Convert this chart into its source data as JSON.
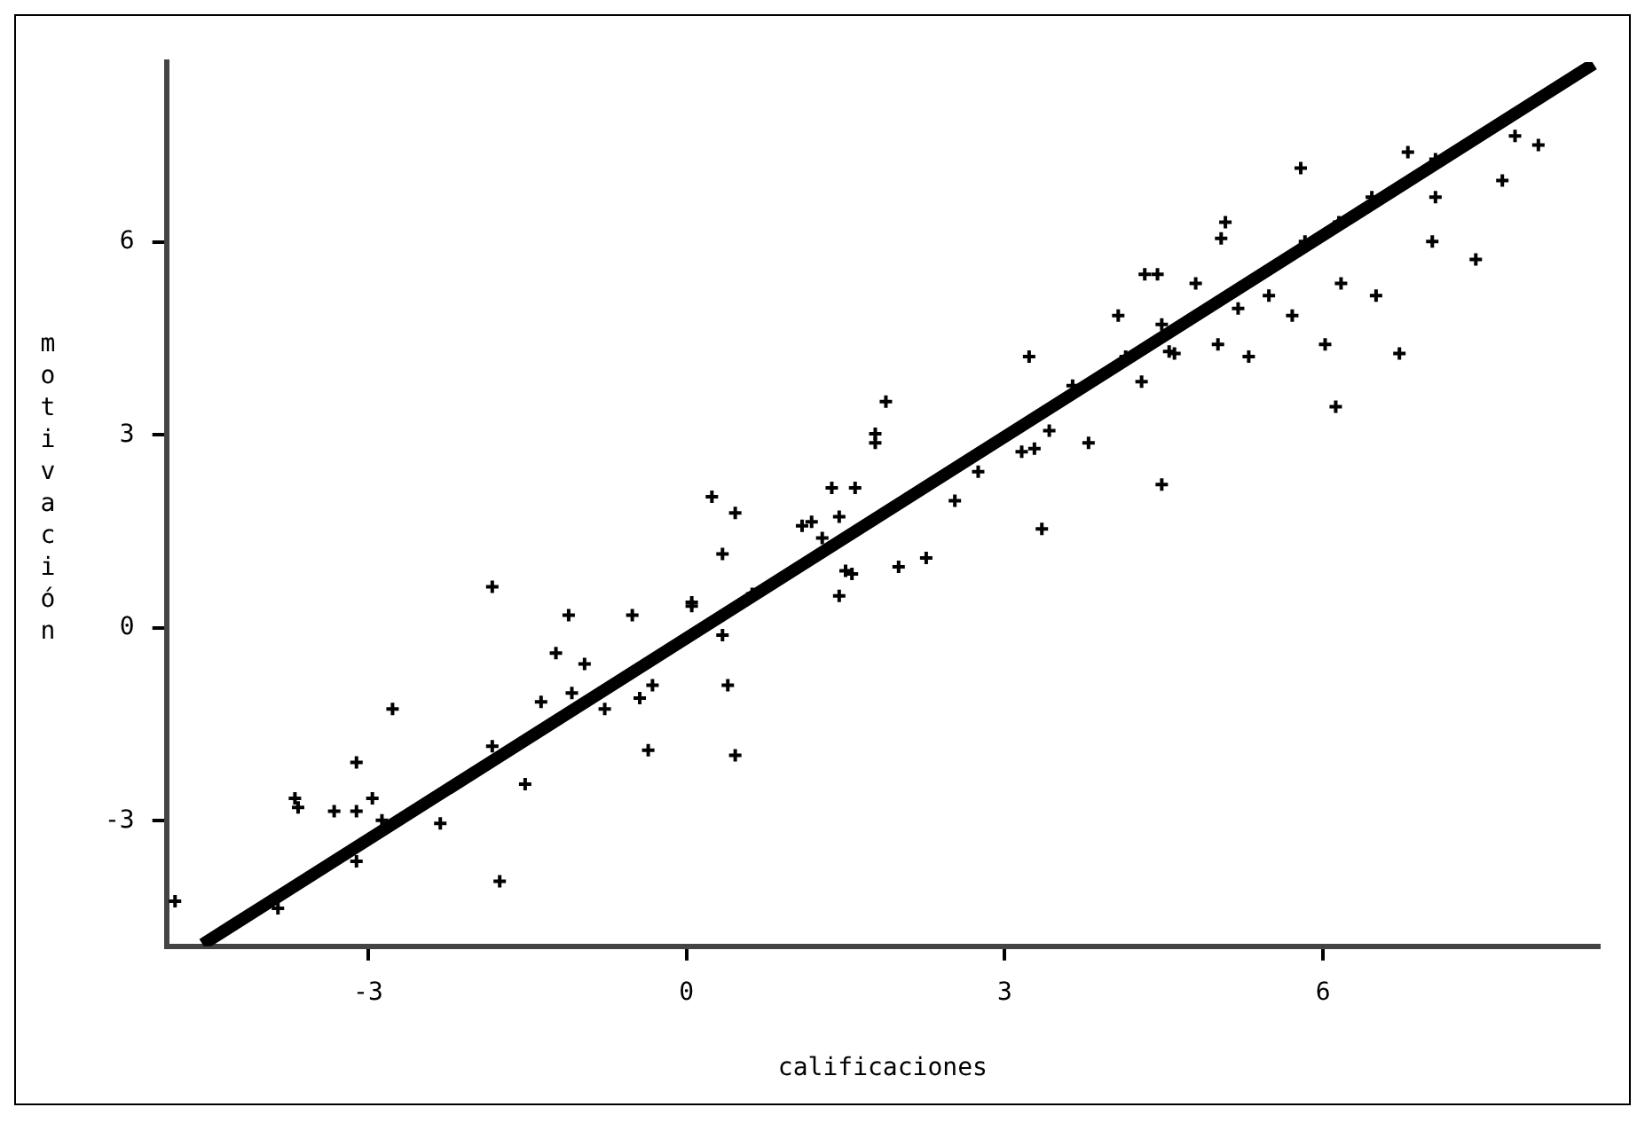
{
  "chart_data": {
    "type": "scatter",
    "xlabel": "calificaciones",
    "ylabel": "motivación",
    "xlim": [
      -4.9,
      8.6
    ],
    "ylim": [
      -4.95,
      8.8
    ],
    "xticks": [
      -3,
      0,
      3,
      6
    ],
    "yticks": [
      -3,
      0,
      3,
      6
    ],
    "series": [
      {
        "type": "scatter",
        "marker": "cross",
        "color": "#000000",
        "x": [
          -4.82,
          -3.85,
          -3.69,
          -3.66,
          -3.32,
          -3.11,
          -3.11,
          -2.96,
          -2.87,
          -3.11,
          -2.77,
          -2.32,
          -1.83,
          -1.76,
          -1.83,
          -1.52,
          -1.37,
          -1.23,
          -1.11,
          -1.08,
          -0.96,
          -0.77,
          -0.51,
          -0.44,
          -0.32,
          -0.36,
          0.05,
          0.05,
          0.24,
          0.46,
          0.34,
          0.34,
          0.39,
          0.46,
          0.62,
          1.09,
          1.18,
          1.28,
          1.37,
          1.44,
          1.59,
          1.44,
          1.5,
          1.56,
          1.78,
          1.78,
          1.88,
          2.0,
          2.26,
          2.53,
          2.75,
          3.16,
          3.28,
          3.23,
          3.42,
          3.35,
          3.64,
          3.79,
          4.07,
          4.14,
          4.29,
          4.32,
          4.44,
          4.48,
          4.48,
          4.55,
          4.6,
          4.8,
          5.01,
          5.04,
          5.08,
          5.2,
          5.3,
          5.49,
          5.71,
          5.79,
          5.83,
          6.02,
          6.12,
          6.17,
          6.15,
          6.46,
          6.5,
          6.72,
          6.8,
          7.03,
          7.06,
          7.06,
          7.44,
          7.69,
          7.81,
          8.03
        ],
        "values": [
          -4.25,
          -4.36,
          -2.65,
          -2.79,
          -2.85,
          -2.85,
          -2.09,
          -2.65,
          -2.99,
          -3.63,
          -1.26,
          -3.04,
          -1.84,
          -3.94,
          0.64,
          -2.43,
          -1.15,
          -0.39,
          0.2,
          -1.01,
          -0.56,
          -1.26,
          0.2,
          -1.09,
          -0.89,
          -1.9,
          0.4,
          0.34,
          2.04,
          1.79,
          1.15,
          -0.11,
          -0.89,
          -1.98,
          0.53,
          1.59,
          1.65,
          1.4,
          2.18,
          1.73,
          2.18,
          0.5,
          0.89,
          0.84,
          3.02,
          2.88,
          3.52,
          0.95,
          1.09,
          1.98,
          2.43,
          2.74,
          2.79,
          4.22,
          3.07,
          1.54,
          3.77,
          2.88,
          4.86,
          4.22,
          3.83,
          5.5,
          5.5,
          4.72,
          2.23,
          4.3,
          4.27,
          5.36,
          4.41,
          6.06,
          6.31,
          4.97,
          4.22,
          5.17,
          4.86,
          7.15,
          6.01,
          4.41,
          3.44,
          5.36,
          6.31,
          6.7,
          5.17,
          4.27,
          7.4,
          6.01,
          6.7,
          7.29,
          5.73,
          6.96,
          7.65,
          7.51
        ]
      },
      {
        "type": "line",
        "marker": "none",
        "color": "#000000",
        "x": [
          -4.56,
          8.55
        ],
        "values": [
          -4.92,
          8.77
        ]
      }
    ]
  }
}
